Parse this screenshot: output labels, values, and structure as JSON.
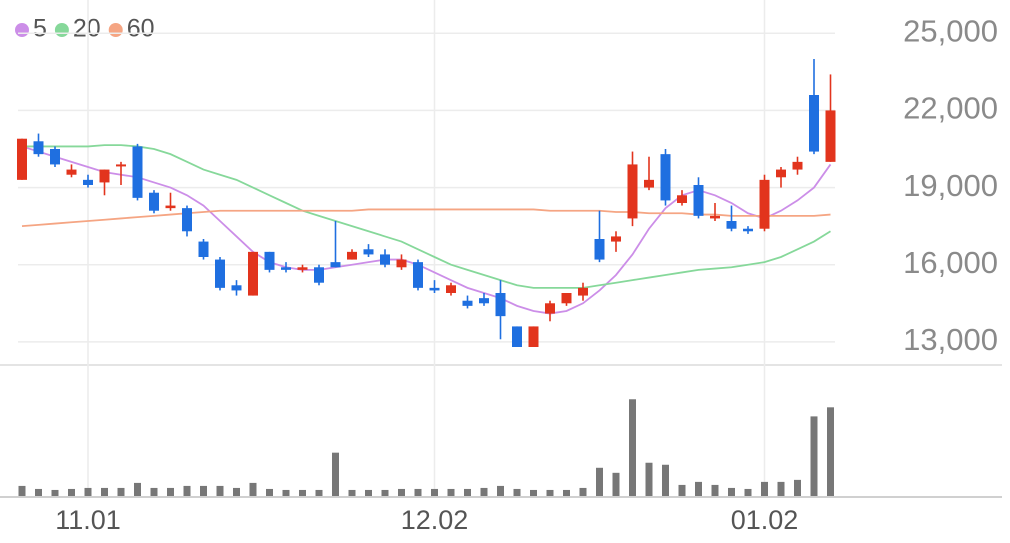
{
  "chart_data": {
    "type": "candlestick",
    "categories": [
      null,
      null,
      null,
      null,
      "11.01",
      null,
      null,
      null,
      null,
      null,
      null,
      null,
      null,
      null,
      null,
      null,
      null,
      null,
      null,
      null,
      null,
      null,
      null,
      null,
      null,
      "12.02",
      null,
      null,
      null,
      null,
      null,
      null,
      null,
      null,
      null,
      null,
      null,
      null,
      null,
      null,
      null,
      null,
      null,
      null,
      null,
      "01.02",
      null,
      null,
      null,
      null
    ],
    "open": [
      19300,
      20800,
      20500,
      19500,
      19300,
      19200,
      19900,
      20600,
      18800,
      18200,
      18200,
      16900,
      16200,
      15200,
      14800,
      16500,
      15900,
      15800,
      15900,
      16100,
      16200,
      16600,
      16400,
      15900,
      16100,
      15100,
      14900,
      14600,
      14700,
      14900,
      13600,
      12800,
      14100,
      14500,
      14800,
      17000,
      16900,
      17800,
      19000,
      20300,
      18400,
      19100,
      17800,
      17700,
      17400,
      17400,
      19400,
      19700,
      22600,
      20000
    ],
    "high": [
      20900,
      21100,
      20600,
      19900,
      19500,
      19700,
      20000,
      20700,
      18900,
      18800,
      18300,
      17000,
      16300,
      15400,
      16500,
      16500,
      16100,
      16000,
      16000,
      17700,
      16600,
      16800,
      16600,
      16400,
      16200,
      15400,
      15300,
      14800,
      14900,
      15400,
      13600,
      13600,
      14600,
      14900,
      15300,
      18100,
      17300,
      20400,
      20200,
      20500,
      18900,
      19400,
      18400,
      18300,
      17500,
      19500,
      19800,
      20200,
      24000,
      23400
    ],
    "low": [
      19300,
      20200,
      19800,
      19400,
      19000,
      18700,
      19100,
      18500,
      18000,
      18100,
      17100,
      16200,
      15000,
      14800,
      14800,
      15700,
      15700,
      15700,
      15200,
      15900,
      16200,
      16300,
      15900,
      15800,
      15000,
      14900,
      14800,
      14300,
      14400,
      13100,
      12800,
      12800,
      13800,
      14400,
      14600,
      16100,
      16500,
      17500,
      18900,
      18300,
      18300,
      17800,
      17700,
      17300,
      17200,
      17300,
      19000,
      19500,
      20300,
      20000
    ],
    "close": [
      20900,
      20300,
      19900,
      19700,
      19100,
      19700,
      19900,
      18600,
      18100,
      18300,
      17300,
      16300,
      15100,
      15000,
      16500,
      15800,
      15800,
      15900,
      15300,
      15900,
      16500,
      16400,
      16000,
      16200,
      15100,
      15000,
      15200,
      14400,
      14500,
      14000,
      12800,
      13600,
      14500,
      14900,
      15100,
      16200,
      17100,
      19900,
      19300,
      18500,
      18700,
      17900,
      17900,
      17400,
      17300,
      19300,
      19700,
      20000,
      20400,
      22000
    ],
    "up_color": "#e2341d",
    "down_color": "#1f6fe0",
    "series": [
      {
        "name": "5",
        "color": "#cc8ee8",
        "values": [
          20600,
          20400,
          20200,
          20000,
          19800,
          19600,
          19500,
          19400,
          19200,
          19000,
          18700,
          18300,
          17700,
          17100,
          16500,
          16100,
          15900,
          15800,
          15800,
          15900,
          16000,
          16100,
          16200,
          16200,
          16000,
          15700,
          15400,
          15100,
          14900,
          14700,
          14400,
          14200,
          14100,
          14200,
          14500,
          15000,
          15600,
          16400,
          17400,
          18200,
          18700,
          18900,
          18700,
          18400,
          18000,
          17800,
          18100,
          18500,
          19000,
          19900
        ]
      },
      {
        "name": "20",
        "color": "#86d89a",
        "values": [
          20600,
          20600,
          20600,
          20600,
          20600,
          20650,
          20650,
          20600,
          20500,
          20300,
          20000,
          19700,
          19500,
          19300,
          19000,
          18700,
          18400,
          18100,
          17900,
          17700,
          17500,
          17300,
          17100,
          16900,
          16600,
          16300,
          16000,
          15800,
          15600,
          15400,
          15200,
          15100,
          15100,
          15100,
          15100,
          15200,
          15300,
          15400,
          15500,
          15600,
          15700,
          15800,
          15850,
          15900,
          16000,
          16100,
          16300,
          16600,
          16900,
          17300
        ]
      },
      {
        "name": "60",
        "color": "#f5a583",
        "values": [
          17500,
          17550,
          17600,
          17650,
          17700,
          17750,
          17800,
          17850,
          17900,
          17950,
          18000,
          18050,
          18100,
          18100,
          18100,
          18100,
          18100,
          18100,
          18100,
          18100,
          18100,
          18150,
          18150,
          18150,
          18150,
          18150,
          18150,
          18150,
          18150,
          18150,
          18150,
          18150,
          18100,
          18100,
          18100,
          18100,
          18050,
          18050,
          18000,
          18000,
          18000,
          17950,
          17950,
          17900,
          17900,
          17900,
          17900,
          17900,
          17900,
          17950
        ]
      }
    ],
    "volume": {
      "color": "#777777",
      "ylim": [
        0,
        130
      ],
      "values": [
        10,
        7,
        6,
        7,
        8,
        8,
        8,
        13,
        8,
        8,
        10,
        10,
        10,
        8,
        13,
        7,
        6,
        6,
        6,
        43,
        6,
        6,
        6,
        7,
        7,
        7,
        7,
        7,
        8,
        10,
        7,
        6,
        6,
        6,
        8,
        28,
        23,
        96,
        33,
        31,
        11,
        14,
        11,
        8,
        7,
        14,
        14,
        16,
        79,
        88
      ]
    },
    "ylim": [
      12100,
      26100
    ],
    "yticks": [
      {
        "value": 13000,
        "label": "13,000"
      },
      {
        "value": 16000,
        "label": "16,000"
      },
      {
        "value": 19000,
        "label": "19,000"
      },
      {
        "value": 22000,
        "label": "22,000"
      },
      {
        "value": 25000,
        "label": "25,000"
      }
    ],
    "grid": true
  }
}
